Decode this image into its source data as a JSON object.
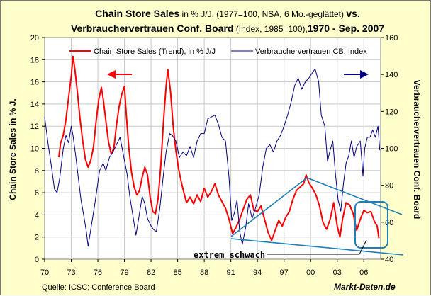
{
  "chart_data": {
    "type": "line",
    "title": {
      "line1_bold": "Chain Store Sales",
      "line1_normal": " in % J/J, (1977=100, NSA, 6 Mo.-geglättet) ",
      "line1_bold2": "vs.",
      "line2_bold": "Verbrauchervertrauen Conf. Board",
      "line2_normal": " (Index, 1985=100),",
      "line2_bold2": "1970 - Sep. 2007"
    },
    "x_tick_labels": [
      "70",
      "73",
      "76",
      "79",
      "82",
      "85",
      "88",
      "91",
      "94",
      "97",
      "00",
      "03",
      "06"
    ],
    "x_tick_years": [
      1970,
      1973,
      1976,
      1979,
      1982,
      1985,
      1988,
      1991,
      1994,
      1997,
      2000,
      2003,
      2006
    ],
    "xlim": [
      1970,
      2007.9
    ],
    "y_left": {
      "label": "Chain Store Sales in % J.",
      "ylim": [
        0,
        20
      ],
      "ticks": [
        "0",
        "2",
        "4",
        "6",
        "8",
        "10",
        "12",
        "14",
        "16",
        "18",
        "20"
      ]
    },
    "y_right": {
      "label": "Verbrauchervertrauen Conf. Board",
      "ylim": [
        40,
        160
      ],
      "ticks": [
        "40",
        "60",
        "80",
        "100",
        "120",
        "140",
        "160"
      ]
    },
    "series": [
      {
        "name": "Chain Store Sales (Trend), in % J/J",
        "axis": "left",
        "color": "#FF0000",
        "points": [
          [
            1971.6,
            9.2
          ],
          [
            1971.8,
            10.5
          ],
          [
            1972.1,
            11.2
          ],
          [
            1972.4,
            12.6
          ],
          [
            1972.7,
            14.6
          ],
          [
            1973.0,
            16.5
          ],
          [
            1973.2,
            18.3
          ],
          [
            1973.4,
            17.2
          ],
          [
            1973.7,
            15.0
          ],
          [
            1974.0,
            12.6
          ],
          [
            1974.3,
            10.6
          ],
          [
            1974.6,
            9.0
          ],
          [
            1974.9,
            8.3
          ],
          [
            1975.2,
            8.9
          ],
          [
            1975.5,
            10.1
          ],
          [
            1975.8,
            12.4
          ],
          [
            1976.1,
            14.4
          ],
          [
            1976.4,
            15.5
          ],
          [
            1976.6,
            14.5
          ],
          [
            1976.9,
            12.5
          ],
          [
            1977.2,
            10.6
          ],
          [
            1977.5,
            9.5
          ],
          [
            1977.8,
            10.0
          ],
          [
            1978.1,
            12.1
          ],
          [
            1978.4,
            13.8
          ],
          [
            1978.7,
            14.9
          ],
          [
            1979.0,
            15.6
          ],
          [
            1979.2,
            13.1
          ],
          [
            1979.5,
            10.0
          ],
          [
            1979.8,
            7.8
          ],
          [
            1980.1,
            6.5
          ],
          [
            1980.4,
            5.8
          ],
          [
            1980.7,
            6.2
          ],
          [
            1981.0,
            7.4
          ],
          [
            1981.3,
            8.3
          ],
          [
            1981.6,
            7.6
          ],
          [
            1981.9,
            5.6
          ],
          [
            1982.2,
            4.3
          ],
          [
            1982.5,
            4.1
          ],
          [
            1982.8,
            5.5
          ],
          [
            1983.1,
            8.4
          ],
          [
            1983.4,
            12.4
          ],
          [
            1983.7,
            15.6
          ],
          [
            1983.9,
            17.1
          ],
          [
            1984.2,
            15.1
          ],
          [
            1984.5,
            12.0
          ],
          [
            1984.8,
            9.8
          ],
          [
            1985.1,
            8.2
          ],
          [
            1985.4,
            7.0
          ],
          [
            1985.7,
            6.0
          ],
          [
            1986.0,
            5.1
          ],
          [
            1986.4,
            5.6
          ],
          [
            1986.8,
            5.0
          ],
          [
            1987.2,
            5.8
          ],
          [
            1987.6,
            5.2
          ],
          [
            1988.0,
            6.4
          ],
          [
            1988.4,
            5.6
          ],
          [
            1988.8,
            6.1
          ],
          [
            1989.2,
            6.8
          ],
          [
            1989.6,
            5.8
          ],
          [
            1990.0,
            5.2
          ],
          [
            1990.4,
            4.6
          ],
          [
            1990.8,
            3.6
          ],
          [
            1991.2,
            2.3
          ],
          [
            1991.6,
            2.9
          ],
          [
            1992.0,
            3.6
          ],
          [
            1992.4,
            4.5
          ],
          [
            1992.8,
            5.4
          ],
          [
            1993.2,
            5.8
          ],
          [
            1993.6,
            4.4
          ],
          [
            1994.0,
            4.3
          ],
          [
            1994.4,
            4.8
          ],
          [
            1994.8,
            3.6
          ],
          [
            1995.2,
            2.4
          ],
          [
            1995.6,
            1.7
          ],
          [
            1996.0,
            2.6
          ],
          [
            1996.4,
            3.5
          ],
          [
            1996.8,
            3.0
          ],
          [
            1997.2,
            3.8
          ],
          [
            1997.6,
            4.3
          ],
          [
            1998.0,
            5.4
          ],
          [
            1998.4,
            6.2
          ],
          [
            1998.8,
            6.5
          ],
          [
            1999.2,
            6.8
          ],
          [
            1999.5,
            7.6
          ],
          [
            1999.8,
            6.9
          ],
          [
            2000.2,
            6.4
          ],
          [
            2000.6,
            5.8
          ],
          [
            2001.0,
            4.8
          ],
          [
            2001.4,
            3.3
          ],
          [
            2001.8,
            2.7
          ],
          [
            2002.2,
            3.6
          ],
          [
            2002.6,
            5.1
          ],
          [
            2003.0,
            3.0
          ],
          [
            2003.3,
            2.0
          ],
          [
            2003.6,
            3.6
          ],
          [
            2004.0,
            5.1
          ],
          [
            2004.4,
            4.9
          ],
          [
            2004.8,
            4.1
          ],
          [
            2005.2,
            2.6
          ],
          [
            2005.6,
            3.6
          ],
          [
            2006.0,
            4.4
          ],
          [
            2006.4,
            4.2
          ],
          [
            2006.8,
            4.3
          ],
          [
            2007.2,
            3.4
          ],
          [
            2007.5,
            3.0
          ],
          [
            2007.7,
            1.9
          ]
        ]
      },
      {
        "name": "Verbrauchervertrauen CB, Index",
        "axis": "right",
        "color": "#000080",
        "points": [
          [
            1970.0,
            117
          ],
          [
            1970.4,
            102
          ],
          [
            1970.8,
            89
          ],
          [
            1971.1,
            78
          ],
          [
            1971.4,
            76
          ],
          [
            1971.7,
            84
          ],
          [
            1972.1,
            100
          ],
          [
            1972.4,
            107
          ],
          [
            1972.7,
            103
          ],
          [
            1973.0,
            112
          ],
          [
            1973.2,
            107
          ],
          [
            1973.5,
            96
          ],
          [
            1973.8,
            84
          ],
          [
            1974.1,
            72
          ],
          [
            1974.4,
            64
          ],
          [
            1974.7,
            55
          ],
          [
            1974.9,
            47
          ],
          [
            1975.2,
            56
          ],
          [
            1975.6,
            68
          ],
          [
            1975.9,
            78
          ],
          [
            1976.2,
            88
          ],
          [
            1976.6,
            92
          ],
          [
            1976.9,
            88
          ],
          [
            1977.3,
            95
          ],
          [
            1977.7,
            98
          ],
          [
            1978.1,
            102
          ],
          [
            1978.5,
            106
          ],
          [
            1978.9,
            96
          ],
          [
            1979.3,
            86
          ],
          [
            1979.6,
            74
          ],
          [
            1980.0,
            62
          ],
          [
            1980.3,
            53
          ],
          [
            1980.6,
            62
          ],
          [
            1981.0,
            74
          ],
          [
            1981.3,
            70
          ],
          [
            1981.6,
            62
          ],
          [
            1982.0,
            58
          ],
          [
            1982.3,
            56
          ],
          [
            1982.6,
            55
          ],
          [
            1983.0,
            68
          ],
          [
            1983.4,
            86
          ],
          [
            1983.7,
            98
          ],
          [
            1984.1,
            108
          ],
          [
            1984.4,
            107
          ],
          [
            1984.8,
            104
          ],
          [
            1985.2,
            95
          ],
          [
            1985.6,
            98
          ],
          [
            1986.0,
            96
          ],
          [
            1986.4,
            101
          ],
          [
            1986.8,
            95
          ],
          [
            1987.2,
            104
          ],
          [
            1987.6,
            108
          ],
          [
            1988.0,
            108
          ],
          [
            1988.4,
            116
          ],
          [
            1988.8,
            117
          ],
          [
            1989.2,
            118
          ],
          [
            1989.6,
            113
          ],
          [
            1990.0,
            106
          ],
          [
            1990.4,
            104
          ],
          [
            1990.8,
            84
          ],
          [
            1991.1,
            61
          ],
          [
            1991.4,
            65
          ],
          [
            1991.7,
            72
          ],
          [
            1992.0,
            55
          ],
          [
            1992.3,
            48
          ],
          [
            1992.7,
            58
          ],
          [
            1993.0,
            70
          ],
          [
            1993.4,
            62
          ],
          [
            1993.8,
            68
          ],
          [
            1994.2,
            75
          ],
          [
            1994.6,
            90
          ],
          [
            1995.0,
            100
          ],
          [
            1995.4,
            102
          ],
          [
            1995.8,
            98
          ],
          [
            1996.2,
            104
          ],
          [
            1996.6,
            107
          ],
          [
            1997.0,
            112
          ],
          [
            1997.4,
            118
          ],
          [
            1997.8,
            125
          ],
          [
            1998.2,
            134
          ],
          [
            1998.6,
            138
          ],
          [
            1999.0,
            132
          ],
          [
            1999.4,
            136
          ],
          [
            1999.8,
            138
          ],
          [
            2000.2,
            141
          ],
          [
            2000.5,
            143
          ],
          [
            2000.9,
            136
          ],
          [
            2001.2,
            118
          ],
          [
            2001.6,
            112
          ],
          [
            2001.9,
            93
          ],
          [
            2002.2,
            99
          ],
          [
            2002.5,
            104
          ],
          [
            2002.8,
            86
          ],
          [
            2003.1,
            72
          ],
          [
            2003.4,
            66
          ],
          [
            2003.7,
            81
          ],
          [
            2004.0,
            92
          ],
          [
            2004.3,
            96
          ],
          [
            2004.6,
            104
          ],
          [
            2004.9,
            95
          ],
          [
            2005.2,
            101
          ],
          [
            2005.6,
            104
          ],
          [
            2005.8,
            92
          ],
          [
            2005.9,
            85
          ],
          [
            2006.1,
            100
          ],
          [
            2006.4,
            106
          ],
          [
            2006.7,
            106
          ],
          [
            2007.0,
            110
          ],
          [
            2007.3,
            106
          ],
          [
            2007.6,
            112
          ],
          [
            2007.8,
            99
          ]
        ]
      }
    ],
    "annotations": {
      "arrow_left_color": "#FF0000",
      "arrow_right_color": "#000080",
      "trend_line_color": "#1E7FB8",
      "note_text": "extrem schwach"
    }
  },
  "footer": {
    "source": "Quelle: ICSC; Conference Board",
    "brand": "Markt-Daten.de"
  }
}
